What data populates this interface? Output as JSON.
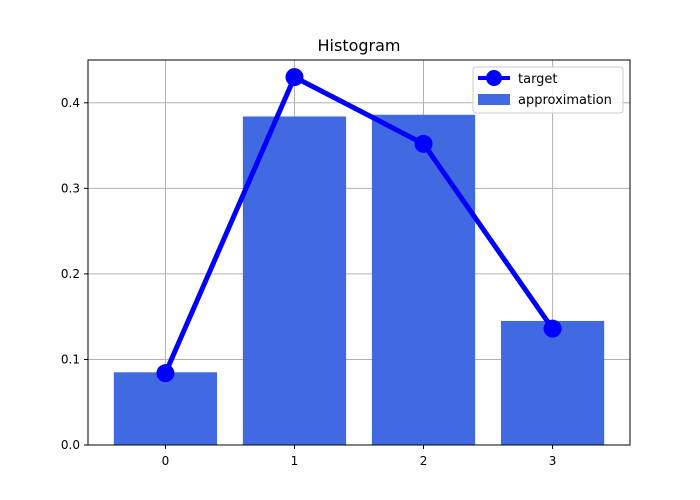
{
  "chart_data": {
    "type": "bar",
    "title": "Histogram",
    "xlabel": "",
    "ylabel": "",
    "categories": [
      "0",
      "1",
      "2",
      "3"
    ],
    "x": [
      0,
      1,
      2,
      3
    ],
    "xlim": [
      -0.6,
      3.6
    ],
    "ylim": [
      0.0,
      0.45
    ],
    "yticks": [
      0.0,
      0.1,
      0.2,
      0.3,
      0.4
    ],
    "ytick_labels": [
      "0.0",
      "0.1",
      "0.2",
      "0.3",
      "0.4"
    ],
    "grid": true,
    "legend": "top-right",
    "series": [
      {
        "name": "target",
        "kind": "line",
        "marker": "circle",
        "color": "#0000ff",
        "values": [
          0.084,
          0.43,
          0.352,
          0.136
        ]
      },
      {
        "name": "approximation",
        "kind": "bar",
        "color": "#4169e1",
        "values": [
          0.085,
          0.384,
          0.386,
          0.145
        ]
      }
    ]
  }
}
